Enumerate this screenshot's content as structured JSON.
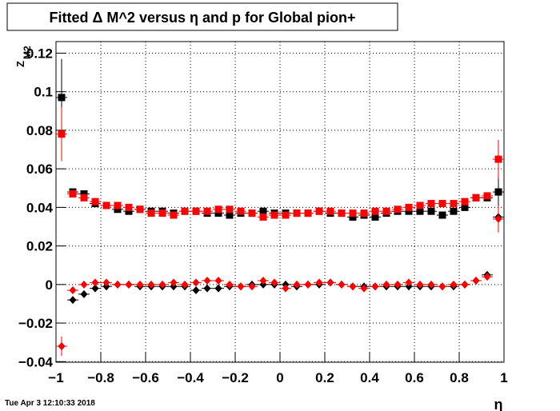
{
  "chart_data": {
    "type": "scatter",
    "title": "Fitted Δ M^2 versus η and p for Global pion+",
    "x_label": "η",
    "y_label": "Z",
    "y_label_sub": "M2",
    "timestamp": "Tue Apr  3 12:10:33 2018",
    "x": [
      -0.975,
      -0.925,
      -0.875,
      -0.825,
      -0.775,
      -0.725,
      -0.675,
      -0.625,
      -0.575,
      -0.525,
      -0.475,
      -0.425,
      -0.375,
      -0.325,
      -0.275,
      -0.225,
      -0.175,
      -0.125,
      -0.075,
      -0.025,
      0.025,
      0.075,
      0.125,
      0.175,
      0.225,
      0.275,
      0.325,
      0.375,
      0.425,
      0.475,
      0.525,
      0.575,
      0.625,
      0.675,
      0.725,
      0.775,
      0.825,
      0.875,
      0.925,
      0.975
    ],
    "series": [
      {
        "color": "#000000",
        "marker": "square",
        "values": [
          0.097,
          0.048,
          0.047,
          0.042,
          0.041,
          0.039,
          0.038,
          0.039,
          0.038,
          0.038,
          0.037,
          0.038,
          0.038,
          0.037,
          0.037,
          0.036,
          0.037,
          0.037,
          0.038,
          0.037,
          0.037,
          0.037,
          0.037,
          0.038,
          0.037,
          0.037,
          0.035,
          0.036,
          0.035,
          0.037,
          0.038,
          0.038,
          0.038,
          0.038,
          0.036,
          0.038,
          0.04,
          0.045,
          0.045,
          0.048
        ],
        "errors": [
          0.02,
          0,
          0,
          0,
          0,
          0,
          0,
          0,
          0,
          0,
          0,
          0,
          0,
          0,
          0,
          0,
          0,
          0,
          0,
          0,
          0,
          0,
          0,
          0,
          0,
          0,
          0,
          0,
          0,
          0,
          0,
          0,
          0,
          0,
          0,
          0,
          0,
          0,
          0,
          0.008
        ]
      },
      {
        "color": "#ff0000",
        "marker": "square",
        "values": [
          0.078,
          0.047,
          0.045,
          0.043,
          0.041,
          0.041,
          0.04,
          0.039,
          0.037,
          0.037,
          0.036,
          0.038,
          0.038,
          0.038,
          0.039,
          0.039,
          0.038,
          0.037,
          0.035,
          0.036,
          0.036,
          0.037,
          0.037,
          0.038,
          0.038,
          0.037,
          0.037,
          0.037,
          0.038,
          0.038,
          0.039,
          0.04,
          0.041,
          0.042,
          0.042,
          0.042,
          0.043,
          0.045,
          0.046,
          0.065
        ],
        "errors": [
          0.014,
          0,
          0,
          0,
          0,
          0,
          0,
          0,
          0,
          0,
          0,
          0,
          0,
          0,
          0,
          0,
          0,
          0,
          0,
          0,
          0,
          0,
          0,
          0,
          0,
          0,
          0,
          0,
          0,
          0,
          0,
          0,
          0,
          0,
          0,
          0,
          0,
          0,
          0,
          0.01
        ]
      },
      {
        "color": "#000000",
        "marker": "diamond",
        "values": [
          -0.032,
          -0.008,
          -0.005,
          -0.002,
          -0.001,
          0,
          0,
          -0.001,
          -0.001,
          -0.001,
          -0.001,
          -0.001,
          -0.003,
          -0.002,
          -0.002,
          -0.001,
          -0.001,
          0,
          0,
          0,
          0,
          -0.001,
          0,
          0,
          0.001,
          0,
          -0.001,
          -0.001,
          -0.001,
          -0.001,
          -0.001,
          -0.001,
          -0.001,
          -0.001,
          -0.001,
          -0.001,
          0,
          0.002,
          0.005,
          0.035
        ],
        "errors": [
          0.004,
          0,
          0,
          0,
          0,
          0,
          0,
          0,
          0,
          0,
          0,
          0,
          0,
          0,
          0,
          0,
          0,
          0,
          0,
          0,
          0,
          0,
          0,
          0,
          0,
          0,
          0,
          0,
          0,
          0,
          0,
          0,
          0,
          0,
          0,
          0,
          0,
          0,
          0,
          0.003
        ]
      },
      {
        "color": "#ff0000",
        "marker": "diamond",
        "values": [
          -0.032,
          -0.003,
          0,
          0.001,
          0.001,
          0,
          0,
          0,
          0,
          0,
          0.001,
          0,
          0.001,
          0.002,
          0.002,
          0,
          -0.001,
          -0.001,
          0.002,
          0.001,
          -0.002,
          0,
          0,
          0.001,
          0.001,
          0,
          -0.001,
          -0.002,
          -0.001,
          0,
          0,
          0.001,
          0,
          0,
          -0.001,
          0,
          0,
          0.002,
          0.004,
          0.034
        ],
        "errors": [
          0.005,
          0,
          0,
          0,
          0,
          0,
          0,
          0,
          0,
          0,
          0,
          0,
          0,
          0,
          0,
          0,
          0,
          0,
          0,
          0,
          0,
          0,
          0,
          0,
          0,
          0,
          0,
          0,
          0,
          0,
          0,
          0,
          0,
          0,
          0,
          0,
          0,
          0,
          0,
          0.007
        ]
      }
    ],
    "xlim": [
      -1,
      1
    ],
    "xticks": [
      {
        "value": -1,
        "label": "−1"
      },
      {
        "value": -0.8,
        "label": "−0.8"
      },
      {
        "value": -0.6,
        "label": "−0.6"
      },
      {
        "value": -0.4,
        "label": "−0.4"
      },
      {
        "value": -0.2,
        "label": "−0.2"
      },
      0,
      0.2,
      0.4,
      0.6,
      0.8,
      1
    ],
    "ylim": [
      -0.0403,
      0.126
    ],
    "yticks": [
      {
        "value": -0.04,
        "label": "−0.04"
      },
      {
        "value": -0.02,
        "label": "−0.02"
      },
      0,
      0.02,
      0.04,
      0.06,
      0.08,
      0.1,
      0.12
    ],
    "grid": true
  }
}
